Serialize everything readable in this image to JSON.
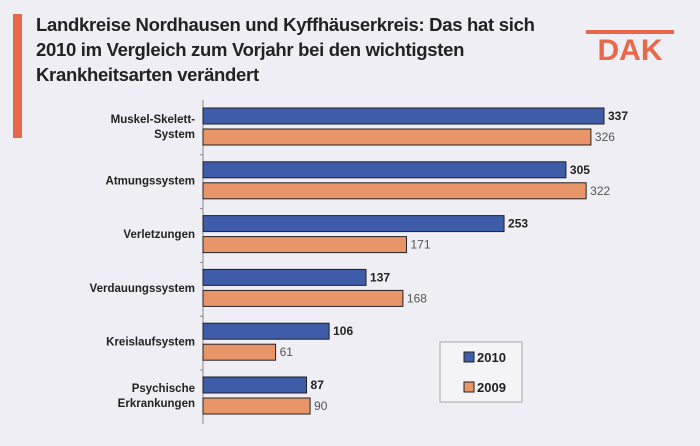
{
  "chart_data": {
    "type": "bar",
    "orientation": "horizontal",
    "title": "Landkreise Nordhausen und Kyffhäuserkreis: Das hat sich 2010 im Vergleich zum Vorjahr bei den wichtigsten Krankheitsarten verändert",
    "categories": [
      "Muskel-Skelett-System",
      "Atmungssystem",
      "Verletzungen",
      "Verdauungssystem",
      "Kreislaufsystem",
      "Psychische Erkrankungen"
    ],
    "category_lines": [
      [
        "Muskel-Skelett-",
        "System"
      ],
      [
        "Atmungssystem"
      ],
      [
        "Verletzungen"
      ],
      [
        "Verdauungssystem"
      ],
      [
        "Kreislaufsystem"
      ],
      [
        "Psychische",
        "Erkrankungen"
      ]
    ],
    "series": [
      {
        "name": "2010",
        "color": "#3f5ca8",
        "values": [
          337,
          305,
          253,
          137,
          106,
          87
        ]
      },
      {
        "name": "2009",
        "color": "#e8956a",
        "values": [
          326,
          322,
          171,
          168,
          61,
          90
        ]
      }
    ],
    "xlim": [
      0,
      337
    ],
    "grid": false,
    "legend": "bottom-right"
  },
  "logo": {
    "text": "DAK",
    "color": "#e8694a"
  }
}
